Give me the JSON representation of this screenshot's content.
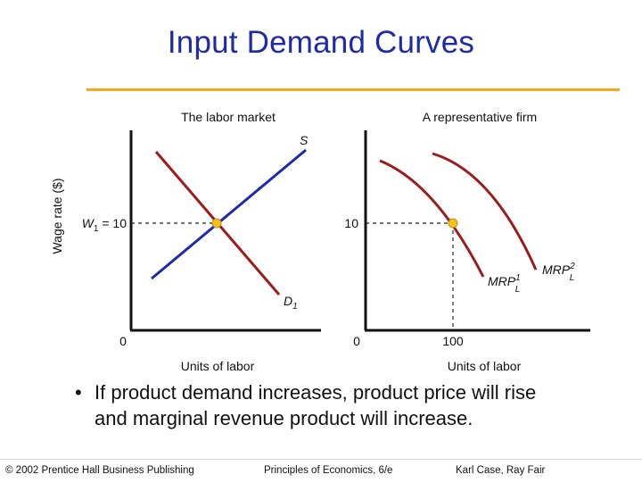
{
  "slide": {
    "title": "Input Demand Curves",
    "colors": {
      "title": "#1f2aa8",
      "rule": "#f2a81c",
      "demand": "#9b1c1c",
      "supply": "#1c2ab0",
      "equilibrium": "#f2c21c"
    }
  },
  "left_panel": {
    "title": "The labor market",
    "y_axis_label": "Wage rate ($)",
    "x_axis_label": "Units of labor",
    "origin_label": "0",
    "wage_label_main": "W",
    "wage_label_sub": "1",
    "wage_label_value": " = 10",
    "supply_label": "S",
    "demand_label_main": "D",
    "demand_label_sub": "1"
  },
  "right_panel": {
    "title": "A representative firm",
    "x_axis_label": "Units of labor",
    "origin_label": "0",
    "y_tick_label": "10",
    "x_tick_label": "100",
    "mrp1_main": "MRP",
    "mrp1_sup": "1",
    "mrp1_sub": "L",
    "mrp2_main": "MRP",
    "mrp2_sup": "2",
    "mrp2_sub": "L"
  },
  "bullet": {
    "marker": "•",
    "text": "If product demand increases, product price will rise and marginal revenue product will increase."
  },
  "footer": {
    "publisher": "© 2002 Prentice Hall Business Publishing",
    "book": "Principles of Economics, 6/e",
    "authors": "Karl Case, Ray Fair"
  }
}
